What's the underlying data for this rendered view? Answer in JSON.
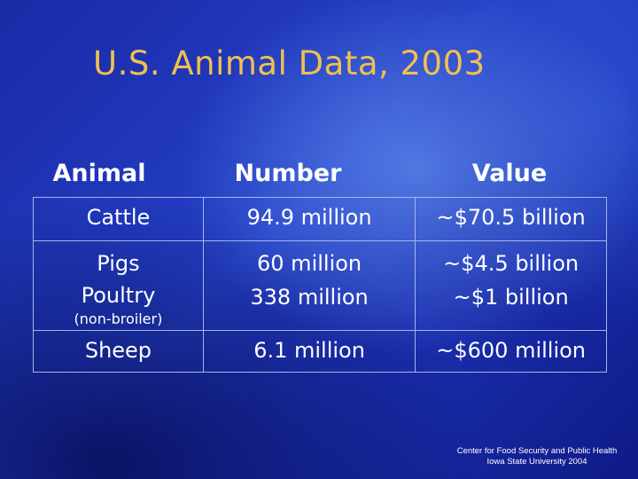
{
  "title": "U.S. Animal Data, 2003",
  "headers": {
    "animal": "Animal",
    "number": "Number",
    "value": "Value"
  },
  "rows": [
    {
      "animal": "Cattle",
      "number": "94.9 million",
      "value": "~$70.5 billion"
    },
    {
      "animal": "Pigs",
      "number": "60 million",
      "value": "~$4.5 billion"
    },
    {
      "animal": "Poultry",
      "animal_note": "(non-broiler)",
      "number": "338 million",
      "value": "~$1 billion"
    },
    {
      "animal": "Sheep",
      "number": "6.1 million",
      "value": "~$600 million"
    }
  ],
  "credit": {
    "line1": "Center for Food Security and Public Health",
    "line2": "Iowa State University 2004"
  }
}
